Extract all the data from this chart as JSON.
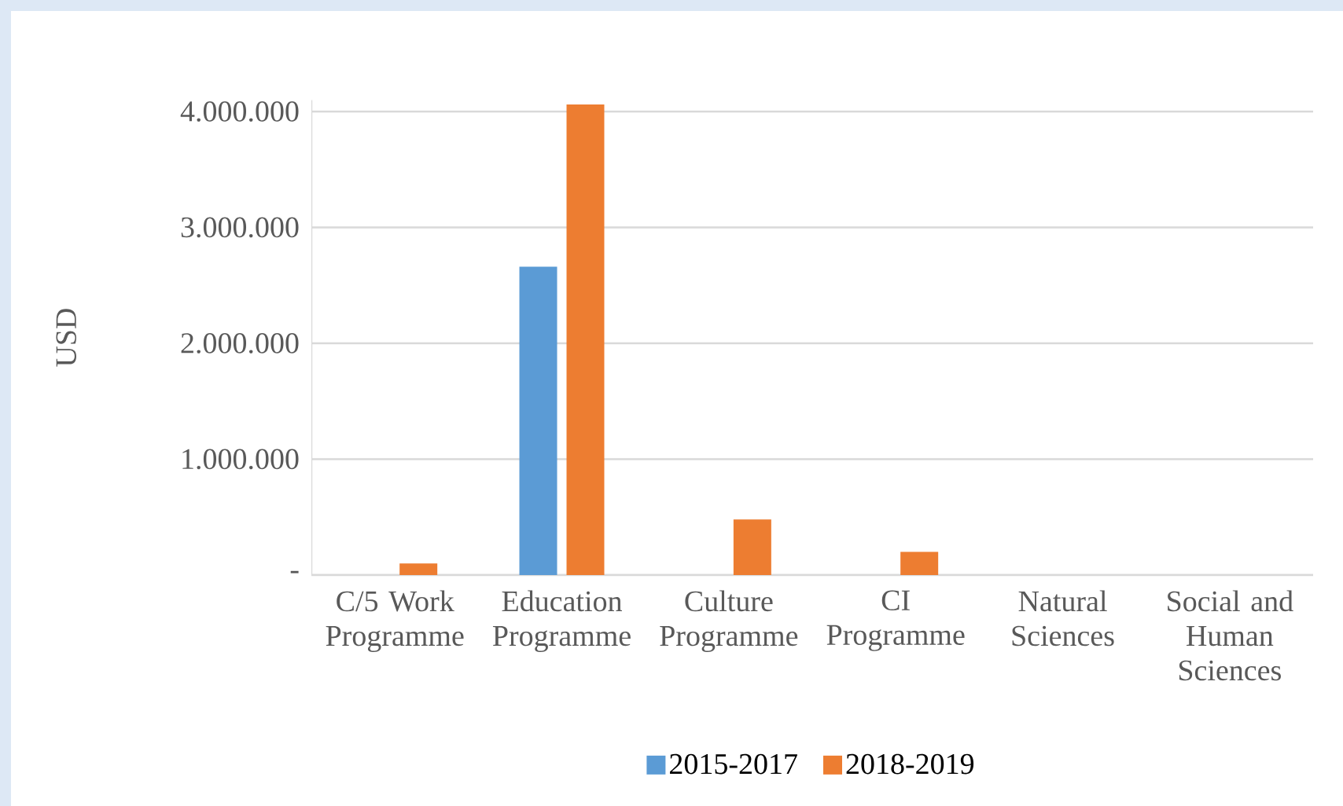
{
  "chart_data": {
    "type": "bar",
    "ylabel": "USD",
    "categories": [
      "C/5 Work Programme",
      "Education Programme",
      "Culture Programme",
      "CI Programme",
      "Natural Sciences",
      "Social and Human Sciences"
    ],
    "series": [
      {
        "name": "2015-2017",
        "color": "#5b9bd5",
        "values": [
          null,
          2660000,
          null,
          null,
          null,
          null
        ]
      },
      {
        "name": "2018-2019",
        "color": "#ed7d31",
        "values": [
          100000,
          4060000,
          480000,
          200000,
          null,
          null
        ]
      }
    ],
    "ylim": [
      0,
      4100000
    ],
    "yticks": [
      {
        "value": 0,
        "label": "-"
      },
      {
        "value": 1000000,
        "label": "1.000.000"
      },
      {
        "value": 2000000,
        "label": "2.000.000"
      },
      {
        "value": 3000000,
        "label": "3.000.000"
      },
      {
        "value": 4000000,
        "label": "4.000.000"
      }
    ],
    "grid": "y",
    "legend": "bottom"
  }
}
